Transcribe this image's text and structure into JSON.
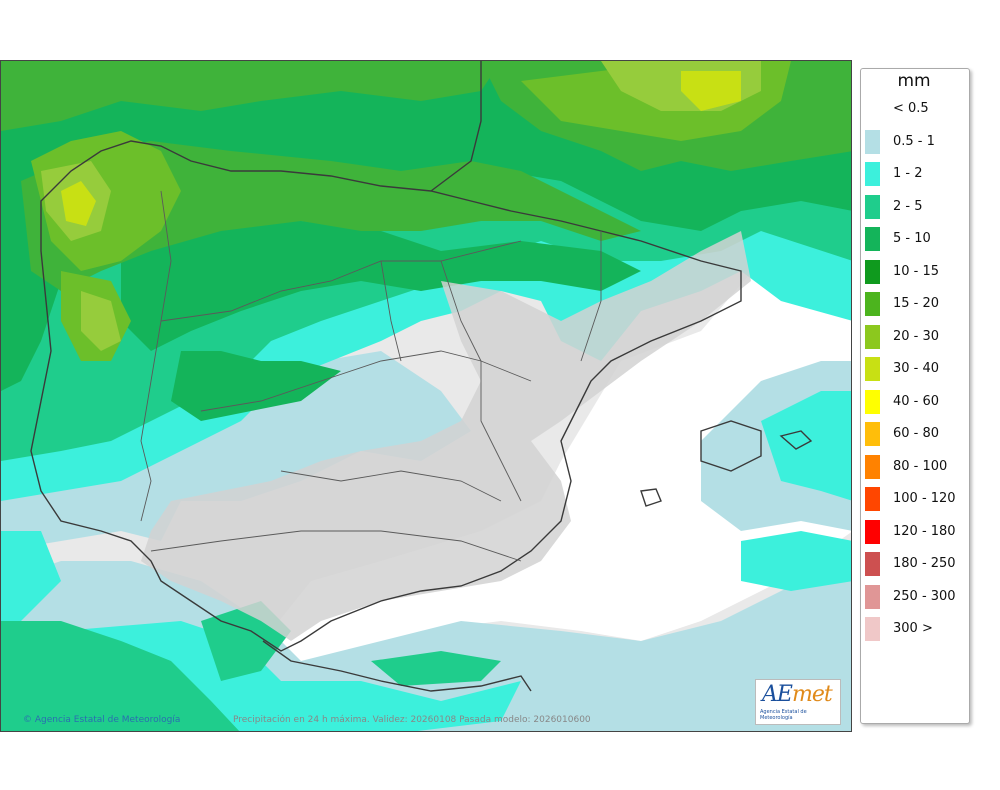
{
  "legend": {
    "unit": "mm",
    "items": [
      {
        "label": "< 0.5",
        "color": ""
      },
      {
        "label": "0.5 - 1",
        "color": "#b4dfe5"
      },
      {
        "label": "1 - 2",
        "color": "#3cf0dc"
      },
      {
        "label": "2 - 5",
        "color": "#1fcd8c"
      },
      {
        "label": "5 - 10",
        "color": "#14b45a"
      },
      {
        "label": "10 - 15",
        "color": "#0f9a1e"
      },
      {
        "label": "15 - 20",
        "color": "#4cb41e"
      },
      {
        "label": "20 - 30",
        "color": "#8cc81e"
      },
      {
        "label": "30 - 40",
        "color": "#c8e014"
      },
      {
        "label": "40 - 60",
        "color": "#ffff00"
      },
      {
        "label": "60 - 80",
        "color": "#ffbe0a"
      },
      {
        "label": "80 - 100",
        "color": "#ff8200"
      },
      {
        "label": "100 - 120",
        "color": "#ff4600"
      },
      {
        "label": "120 - 180",
        "color": "#ff0000"
      },
      {
        "label": "180 - 250",
        "color": "#cd5050"
      },
      {
        "label": "250 - 300",
        "color": "#e09696"
      },
      {
        "label": "300 >",
        "color": "#f0c8c8"
      }
    ]
  },
  "map": {
    "credit": "Agencia Estatal de Meteorología",
    "caption": "Precipitación en 24 h máxima. Validez: 20260108 Pasada modelo: 2026010600",
    "logo": {
      "wordmark_a": "AE",
      "wordmark_m": "met",
      "subtitle": "Agencia Estatal de Meteorología"
    }
  },
  "colors": {
    "sea_dry": "#ffffff",
    "land_dry": "#e4e4e4",
    "relief": "#bdbdbd",
    "border": "#3a3a3a"
  }
}
